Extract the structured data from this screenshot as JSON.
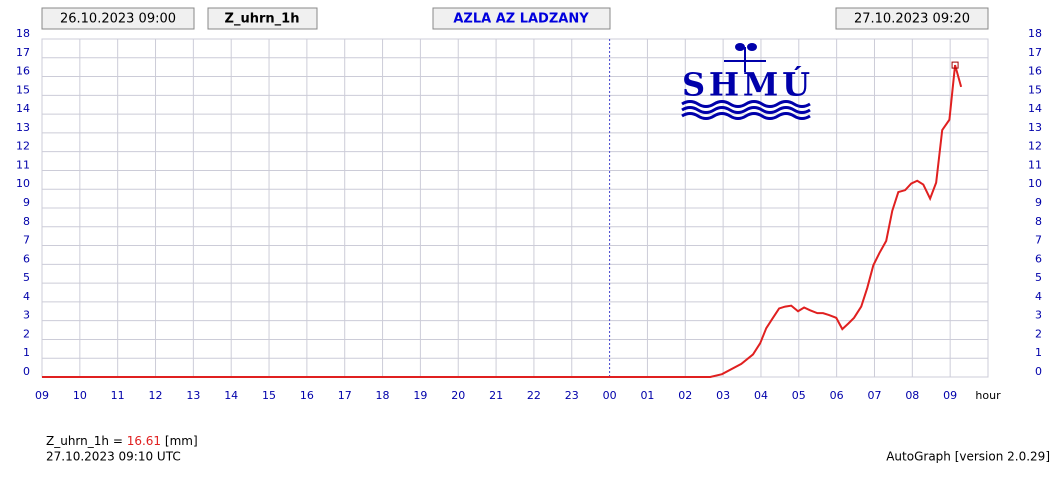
{
  "header": {
    "start": "26.10.2023 09:00",
    "variable": "Z_uhrn_1h",
    "station": "AZLA AZ LADZANY",
    "end": "27.10.2023 09:20",
    "logo": "SHMÚ"
  },
  "chart_data": {
    "type": "line",
    "x_label": "hour",
    "xlim": [
      0,
      25
    ],
    "xticks": [
      {
        "value": 0,
        "label": "09"
      },
      {
        "value": 1,
        "label": "10"
      },
      {
        "value": 2,
        "label": "11"
      },
      {
        "value": 3,
        "label": "12"
      },
      {
        "value": 4,
        "label": "13"
      },
      {
        "value": 5,
        "label": "14"
      },
      {
        "value": 6,
        "label": "15"
      },
      {
        "value": 7,
        "label": "16"
      },
      {
        "value": 8,
        "label": "17"
      },
      {
        "value": 9,
        "label": "18"
      },
      {
        "value": 10,
        "label": "19"
      },
      {
        "value": 11,
        "label": "20"
      },
      {
        "value": 12,
        "label": "21"
      },
      {
        "value": 13,
        "label": "22"
      },
      {
        "value": 14,
        "label": "23"
      },
      {
        "value": 15,
        "label": "00"
      },
      {
        "value": 16,
        "label": "01"
      },
      {
        "value": 17,
        "label": "02"
      },
      {
        "value": 18,
        "label": "03"
      },
      {
        "value": 19,
        "label": "04"
      },
      {
        "value": 20,
        "label": "05"
      },
      {
        "value": 21,
        "label": "06"
      },
      {
        "value": 22,
        "label": "07"
      },
      {
        "value": 23,
        "label": "08"
      },
      {
        "value": 24,
        "label": "09"
      }
    ],
    "ylim": [
      0,
      18
    ],
    "yticks": [
      0,
      1,
      2,
      3,
      4,
      5,
      6,
      7,
      8,
      9,
      10,
      11,
      12,
      13,
      14,
      15,
      16,
      17,
      18
    ],
    "grid": true,
    "series": [
      {
        "name": "Z_uhrn_1h",
        "color": "#e02020",
        "x": [
          0,
          17.66,
          17.97,
          18.48,
          18.79,
          18.98,
          19.14,
          19.3,
          19.48,
          19.64,
          19.8,
          19.98,
          20.14,
          20.3,
          20.49,
          20.64,
          20.8,
          20.99,
          21.15,
          21.31,
          21.46,
          21.65,
          21.81,
          21.97,
          22.13,
          22.31,
          22.47,
          22.63,
          22.81,
          22.97,
          23.13,
          23.29,
          23.47,
          23.63,
          23.79,
          23.98,
          24.13,
          24.29
        ],
        "values": [
          0,
          0,
          0.15,
          0.7,
          1.2,
          1.8,
          2.6,
          3.1,
          3.65,
          3.75,
          3.8,
          3.5,
          3.7,
          3.55,
          3.4,
          3.4,
          3.3,
          3.15,
          2.55,
          2.85,
          3.15,
          3.75,
          4.75,
          5.95,
          6.6,
          7.25,
          8.85,
          9.85,
          9.95,
          10.3,
          10.45,
          10.25,
          9.5,
          10.35,
          13.15,
          13.7,
          16.61,
          15.45
        ]
      }
    ]
  },
  "footer": {
    "label": "Z_uhrn_1h =",
    "value": 16.61,
    "unit": "[mm]",
    "time": "27.10.2023 09:10 UTC",
    "version": "AutoGraph [version 2.0.29]"
  }
}
